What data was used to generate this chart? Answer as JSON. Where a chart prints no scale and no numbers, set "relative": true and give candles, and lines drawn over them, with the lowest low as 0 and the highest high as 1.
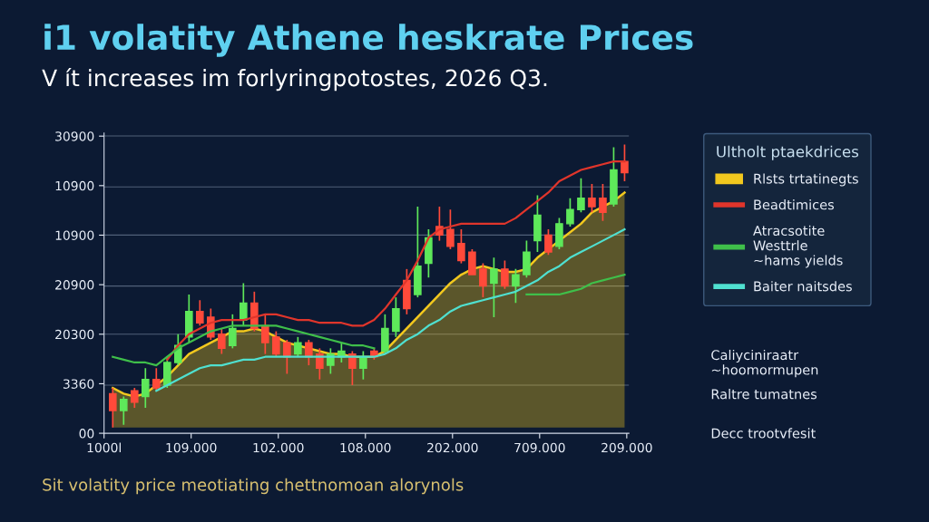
{
  "chart_data": {
    "type": "candlestick",
    "relative": true,
    "title": "i1 volatity Athene heskrate Prices",
    "subtitle": "V ít increases im forlyringpotostes, 2026 Q3.",
    "legend_title": "Ultholt ptaekdrices",
    "legend": "right",
    "ref_lines": [
      {
        "axis": "y",
        "value": 0.15,
        "color": "#7f8fa8"
      },
      {
        "axis": "y",
        "value": 0.33,
        "color": "#7f8fa8"
      },
      {
        "axis": "y",
        "value": 0.5,
        "color": "#7f8fa8"
      },
      {
        "axis": "y",
        "value": 0.68,
        "color": "#7f8fa8"
      },
      {
        "axis": "y",
        "value": 0.85,
        "color": "#7f8fa8"
      },
      {
        "axis": "y",
        "value": 1.03,
        "color": "#7f8fa8"
      }
    ],
    "categories": [
      null,
      null,
      null,
      null,
      null,
      null,
      null,
      null,
      null,
      null,
      null,
      null,
      null,
      null,
      null,
      null,
      null,
      null,
      null,
      null,
      null,
      null,
      null,
      null,
      null,
      null,
      null,
      null,
      null,
      null,
      null,
      null,
      null,
      null,
      null,
      null,
      null,
      null,
      null,
      null,
      null,
      null,
      null,
      null,
      null,
      null,
      null,
      null
    ],
    "ohlc": [
      [
        0.12,
        0.14,
        0,
        0.06
      ],
      [
        0.06,
        0.11,
        0.01,
        0.1
      ],
      [
        0.13,
        0.14,
        0.07,
        0.09
      ],
      [
        0.11,
        0.21,
        0.07,
        0.17
      ],
      [
        0.17,
        0.21,
        0.13,
        0.14
      ],
      [
        0.15,
        0.25,
        0.14,
        0.23
      ],
      [
        0.23,
        0.33,
        0.22,
        0.29
      ],
      [
        0.32,
        0.47,
        0.3,
        0.41
      ],
      [
        0.41,
        0.45,
        0.36,
        0.37
      ],
      [
        0.39,
        0.42,
        0.31,
        0.32
      ],
      [
        0.33,
        0.35,
        0.26,
        0.28
      ],
      [
        0.29,
        0.4,
        0.28,
        0.35
      ],
      [
        0.38,
        0.51,
        0.36,
        0.44
      ],
      [
        0.44,
        0.48,
        0.34,
        0.35
      ],
      [
        0.36,
        0.4,
        0.26,
        0.3
      ],
      [
        0.32,
        0.34,
        0.25,
        0.26
      ],
      [
        0.3,
        0.31,
        0.19,
        0.25
      ],
      [
        0.26,
        0.32,
        0.25,
        0.3
      ],
      [
        0.3,
        0.31,
        0.22,
        0.25
      ],
      [
        0.26,
        0.28,
        0.17,
        0.21
      ],
      [
        0.22,
        0.28,
        0.19,
        0.26
      ],
      [
        0.25,
        0.3,
        0.23,
        0.27
      ],
      [
        0.26,
        0.27,
        0.15,
        0.21
      ],
      [
        0.21,
        0.27,
        0.17,
        0.25
      ],
      [
        0.27,
        0.28,
        0.24,
        0.25
      ],
      [
        0.27,
        0.4,
        0.26,
        0.35
      ],
      [
        0.34,
        0.46,
        0.32,
        0.42
      ],
      [
        0.52,
        0.56,
        0.4,
        0.42
      ],
      [
        0.47,
        0.78,
        0.46,
        0.57
      ],
      [
        0.58,
        0.7,
        0.53,
        0.67
      ],
      [
        0.71,
        0.78,
        0.66,
        0.68
      ],
      [
        0.7,
        0.77,
        0.63,
        0.64
      ],
      [
        0.65,
        0.7,
        0.58,
        0.59
      ],
      [
        0.62,
        0.63,
        0.54,
        0.54
      ],
      [
        0.56,
        0.58,
        0.46,
        0.5
      ],
      [
        0.51,
        0.6,
        0.39,
        0.56
      ],
      [
        0.56,
        0.59,
        0.49,
        0.5
      ],
      [
        0.5,
        0.56,
        0.44,
        0.54
      ],
      [
        0.54,
        0.66,
        0.53,
        0.62
      ],
      [
        0.66,
        0.82,
        0.62,
        0.75
      ],
      [
        0.68,
        0.7,
        0.61,
        0.62
      ],
      [
        0.64,
        0.74,
        0.63,
        0.72
      ],
      [
        0.72,
        0.81,
        0.71,
        0.77
      ],
      [
        0.77,
        0.88,
        0.76,
        0.81
      ],
      [
        0.81,
        0.86,
        0.76,
        0.78
      ],
      [
        0.81,
        0.86,
        0.73,
        0.76
      ],
      [
        0.79,
        0.99,
        0.78,
        0.91
      ],
      [
        0.94,
        1.0,
        0.87,
        0.9
      ]
    ],
    "colors": [
      "#ff4a3a",
      "#5ee85a",
      "#ff4a3a",
      "#5ee85a",
      "#ff4a3a",
      "#5ee85a",
      "#5ee85a",
      "#5ee85a",
      "#ff4a3a",
      "#ff4a3a",
      "#ff4a3a",
      "#5ee85a",
      "#5ee85a",
      "#ff4a3a",
      "#ff4a3a",
      "#ff4a3a",
      "#ff4a3a",
      "#5ee85a",
      "#ff4a3a",
      "#ff4a3a",
      "#5ee85a",
      "#5ee85a",
      "#ff4a3a",
      "#5ee85a",
      "#ff4a3a",
      "#5ee85a",
      "#5ee85a",
      "#ff4a3a",
      "#5ee85a",
      "#5ee85a",
      "#ff4a3a",
      "#ff4a3a",
      "#ff4a3a",
      "#ff4a3a",
      "#ff4a3a",
      "#5ee85a",
      "#ff4a3a",
      "#5ee85a",
      "#5ee85a",
      "#5ee85a",
      "#ff4a3a",
      "#5ee85a",
      "#5ee85a",
      "#5ee85a",
      "#ff4a3a",
      "#ff4a3a",
      "#5ee85a",
      "#ff4a3a"
    ],
    "series": [
      {
        "type": "area",
        "name": "Rlsts trtatinegts",
        "color": "#f2c81e",
        "values": [
          0.14,
          0.12,
          0.11,
          0.12,
          0.15,
          0.18,
          0.22,
          0.26,
          0.28,
          0.3,
          0.32,
          0.34,
          0.34,
          0.35,
          0.34,
          0.32,
          0.3,
          0.29,
          0.28,
          0.27,
          0.26,
          0.26,
          0.25,
          0.25,
          0.25,
          0.27,
          0.31,
          0.35,
          0.39,
          0.43,
          0.47,
          0.51,
          0.54,
          0.56,
          0.57,
          0.56,
          0.55,
          0.55,
          0.56,
          0.6,
          0.63,
          0.66,
          0.69,
          0.72,
          0.76,
          0.78,
          0.8,
          0.83
        ]
      },
      {
        "type": "line",
        "name": "Beadtimices",
        "color": "#e0352b",
        "values": [
          null,
          null,
          null,
          null,
          null,
          0.24,
          0.29,
          0.33,
          0.35,
          0.37,
          0.38,
          0.38,
          0.38,
          0.39,
          0.4,
          0.4,
          0.39,
          0.38,
          0.38,
          0.37,
          0.37,
          0.37,
          0.36,
          0.36,
          0.38,
          0.42,
          0.47,
          0.52,
          0.59,
          0.67,
          0.7,
          0.71,
          0.72,
          0.72,
          0.72,
          0.72,
          0.72,
          0.74,
          0.77,
          0.8,
          0.83,
          0.87,
          0.89,
          0.91,
          0.92,
          0.93,
          0.94,
          0.94
        ]
      },
      {
        "type": "line",
        "name": "Atracsotite\nWesttrle\n~hams yields",
        "color": "#3fbf4a",
        "values": [
          0.25,
          0.24,
          0.23,
          0.23,
          0.22,
          0.25,
          0.28,
          0.3,
          0.32,
          0.34,
          0.35,
          0.36,
          0.36,
          0.36,
          0.36,
          0.36,
          0.35,
          0.34,
          0.33,
          0.32,
          0.31,
          0.3,
          0.29,
          0.29,
          0.28,
          null,
          null,
          null,
          null,
          null,
          null,
          null,
          null,
          null,
          null,
          null,
          null,
          null,
          0.47,
          0.47,
          0.47,
          0.47,
          0.48,
          0.49,
          0.51,
          0.52,
          0.53,
          0.54
        ]
      },
      {
        "type": "line",
        "name": "Baiter naitsdes",
        "color": "#4fe0d0",
        "values": [
          null,
          null,
          null,
          null,
          0.13,
          0.15,
          0.17,
          0.19,
          0.21,
          0.22,
          0.22,
          0.23,
          0.24,
          0.24,
          0.25,
          0.25,
          0.25,
          0.25,
          0.25,
          0.25,
          0.25,
          0.25,
          0.25,
          0.25,
          0.25,
          0.26,
          0.28,
          0.31,
          0.33,
          0.36,
          0.38,
          0.41,
          0.43,
          0.44,
          0.45,
          0.46,
          0.47,
          0.48,
          0.5,
          0.52,
          0.55,
          0.57,
          0.6,
          0.62,
          0.64,
          0.66,
          0.68,
          0.7
        ]
      }
    ],
    "annotations": [
      "00",
      "3360",
      "20300",
      "20900",
      "10900",
      "10900",
      "30900",
      "1000l",
      "109.000",
      "102.000",
      "108.000",
      "202.000",
      "709.000",
      "209.000",
      "Caliyciniraatr\n~hoomormupen",
      "Raltre tumatnes",
      "Decc trootvfesit",
      "Sit volatity price meotiating chettnomoan alorynols"
    ]
  }
}
